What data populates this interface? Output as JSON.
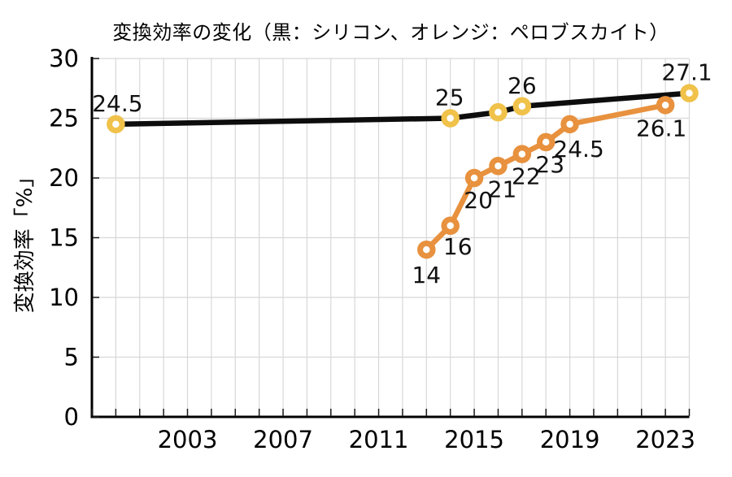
{
  "chart_data": {
    "type": "line",
    "title": "変換効率の変化（黒：シリコン、オレンジ：ペロブスカイト）",
    "ylabel": "変換効率「%」",
    "xlabel": "",
    "xlim": [
      1999,
      2024
    ],
    "ylim": [
      0,
      30
    ],
    "x_ticks": [
      2003,
      2007,
      2011,
      2015,
      2019,
      2023
    ],
    "x_minor_tick_step": 1,
    "y_ticks": [
      0,
      5,
      10,
      15,
      20,
      25,
      30
    ],
    "grid": {
      "color": "#d8d8d8",
      "vertical_step_years": 1,
      "horizontal_step": 5
    },
    "axis_color": "#000000",
    "legend_position": "in-title",
    "series": [
      {
        "name": "シリコン",
        "legend_hint": "黒",
        "line_color": "#0d0d0d",
        "marker_ring_color": "#f0c24a",
        "marker_hole_color": "#ffffff",
        "points": [
          {
            "x": 2000,
            "y": 24.5,
            "label": "24.5",
            "label_dx": 2,
            "label_dy": -26
          },
          {
            "x": 2014,
            "y": 25,
            "label": "25",
            "label_dx": -1,
            "label_dy": -26
          },
          {
            "x": 2016,
            "y": 25.5,
            "label": "",
            "label_dx": 0,
            "label_dy": 0
          },
          {
            "x": 2017,
            "y": 26,
            "label": "26",
            "label_dx": 0,
            "label_dy": -26
          },
          {
            "x": 2024,
            "y": 27.1,
            "label": "27.1",
            "label_dx": -3,
            "label_dy": -26
          }
        ]
      },
      {
        "name": "ペロブスカイト",
        "legend_hint": "オレンジ",
        "line_color": "#e8913e",
        "marker_ring_color": "#e8913e",
        "marker_hole_color": "#ffffff",
        "points": [
          {
            "x": 2013,
            "y": 14,
            "label": "14",
            "label_dx": 0,
            "label_dy": 31
          },
          {
            "x": 2014,
            "y": 16,
            "label": "16",
            "label_dx": 9,
            "label_dy": 25
          },
          {
            "x": 2015,
            "y": 20,
            "label": "20",
            "label_dx": 5,
            "label_dy": 27
          },
          {
            "x": 2016,
            "y": 21,
            "label": "21",
            "label_dx": 5,
            "label_dy": 28
          },
          {
            "x": 2017,
            "y": 22,
            "label": "22",
            "label_dx": 5,
            "label_dy": 27
          },
          {
            "x": 2018,
            "y": 23,
            "label": "23",
            "label_dx": 5,
            "label_dy": 27
          },
          {
            "x": 2019,
            "y": 24.5,
            "label": "24.5",
            "label_dx": 11,
            "label_dy": 30
          },
          {
            "x": 2023,
            "y": 26.1,
            "label": "26.1",
            "label_dx": -5,
            "label_dy": 28
          }
        ]
      }
    ]
  }
}
